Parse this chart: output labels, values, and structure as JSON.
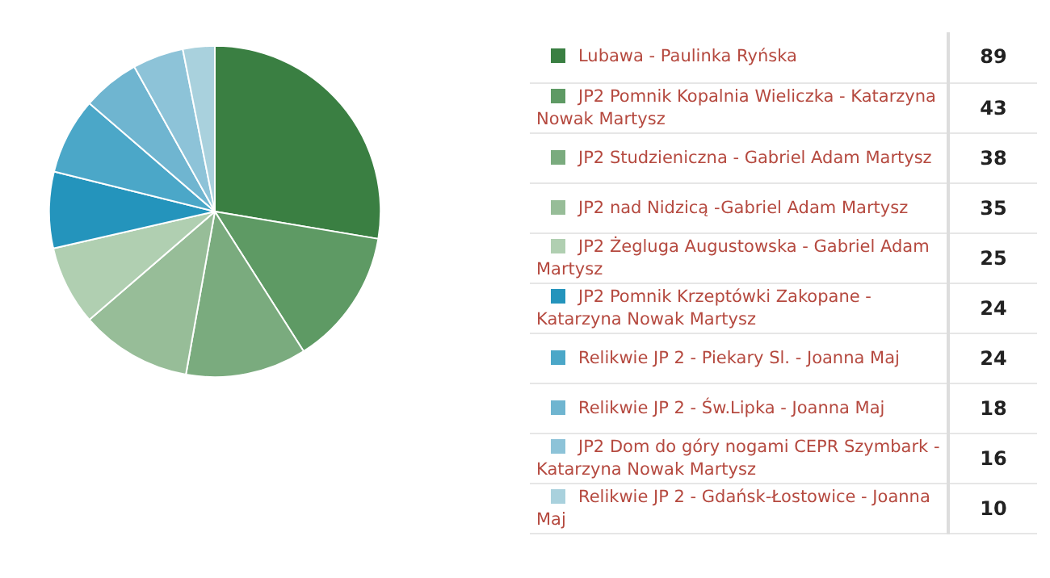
{
  "chart_data": {
    "type": "pie",
    "categories": [
      "Lubawa - Paulinka Ryńska",
      "JP2 Pomnik Kopalnia Wieliczka - Katarzyna Nowak Martysz",
      "JP2 Studzieniczna - Gabriel Adam Martysz",
      "JP2 nad Nidzicą -Gabriel Adam Martysz",
      "JP2 Żegluga Augustowska - Gabriel Adam Martysz",
      "JP2 Pomnik Krzeptówki Zakopane - Katarzyna Nowak Martysz",
      "Relikwie JP 2 - Piekary Sl. - Joanna Maj",
      "Relikwie JP 2 - Św.Lipka - Joanna Maj",
      "JP2 Dom do góry nogami CEPR Szymbark - Katarzyna Nowak Martysz",
      "Relikwie JP 2 - Gdańsk-Łostowice - Joanna Maj"
    ],
    "values": [
      89,
      43,
      38,
      35,
      25,
      24,
      24,
      18,
      16,
      10
    ],
    "colors": [
      "#3a7f42",
      "#5e9a64",
      "#7aab7e",
      "#97bd98",
      "#b0cfb1",
      "#2494bc",
      "#4ba7c8",
      "#6fb5d0",
      "#8dc3d8",
      "#a9d1dd"
    ],
    "data_labels": true,
    "legend": "right"
  }
}
